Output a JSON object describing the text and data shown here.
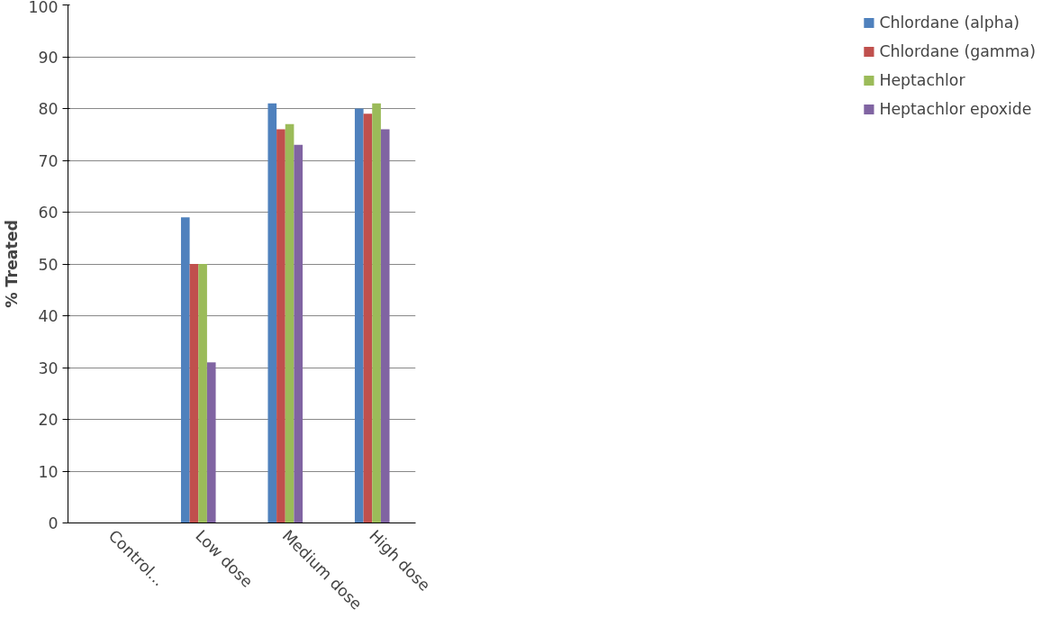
{
  "chart_data": {
    "type": "bar",
    "ylabel": "% Treated",
    "categories": [
      "Control...",
      "Low dose",
      "Medium dose",
      "High dose"
    ],
    "series": [
      {
        "name": "Chlordane (alpha)",
        "color": "#4f81bd",
        "values": [
          0,
          59,
          81,
          80
        ]
      },
      {
        "name": "Chlordane (gamma)",
        "color": "#c0504d",
        "values": [
          0,
          50,
          76,
          79
        ]
      },
      {
        "name": "Heptachlor",
        "color": "#9bbb59",
        "values": [
          0,
          50,
          77,
          81
        ]
      },
      {
        "name": "Heptachlor epoxide",
        "color": "#8064a2",
        "values": [
          0,
          31,
          73,
          76
        ]
      }
    ],
    "ylim": [
      0,
      100
    ],
    "yticks": [
      0,
      10,
      20,
      30,
      40,
      50,
      60,
      70,
      80,
      90,
      100
    ],
    "grid": "y",
    "legend": "top right"
  }
}
